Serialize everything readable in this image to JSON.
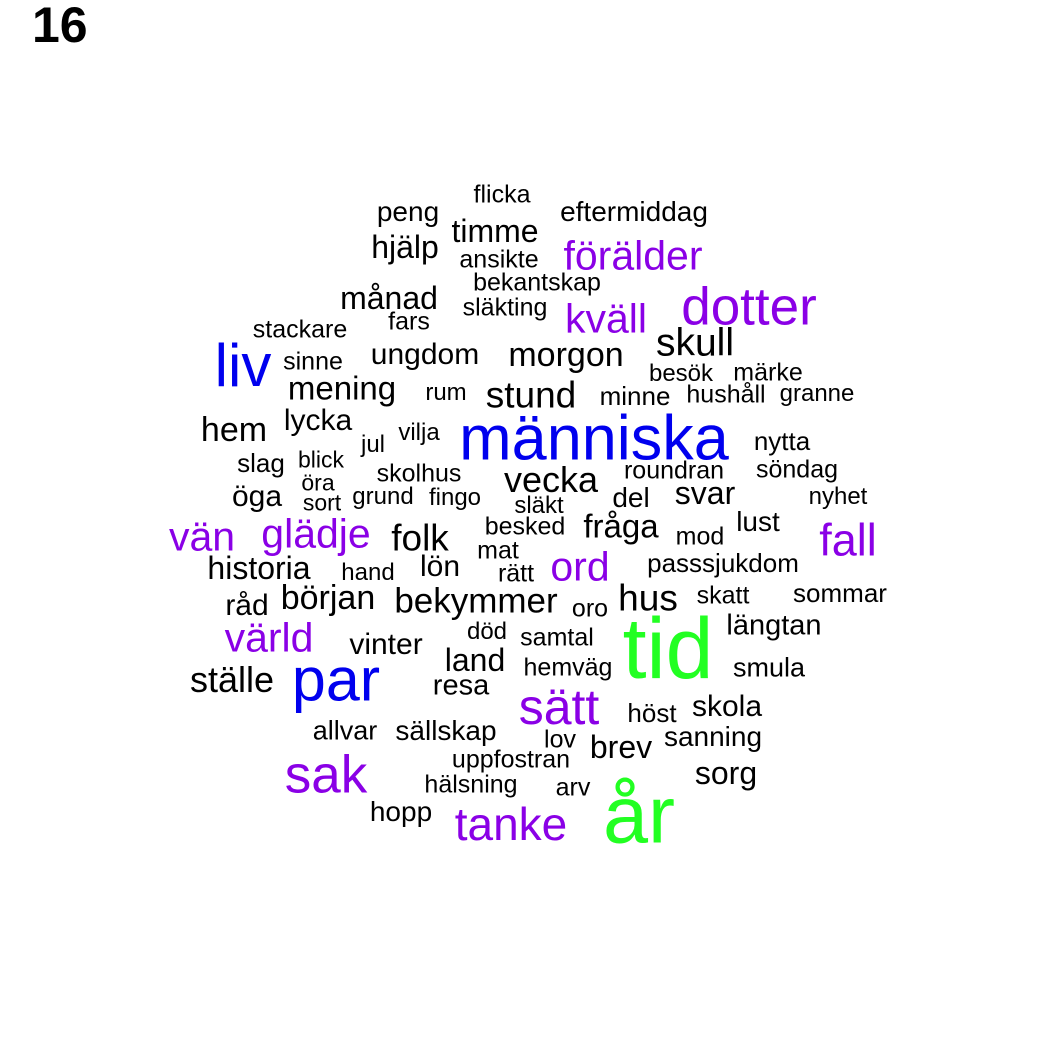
{
  "page_number": "16",
  "colors": {
    "black": "#000000",
    "purple": "#8a00e6",
    "blue": "#0000ee",
    "green": "#22ff22"
  },
  "words": [
    {
      "text": "flicka",
      "color": "black"
    },
    {
      "text": "peng",
      "color": "black"
    },
    {
      "text": "eftermiddag",
      "color": "black"
    },
    {
      "text": "timme",
      "color": "black"
    },
    {
      "text": "hjälp",
      "color": "black"
    },
    {
      "text": "förälder",
      "color": "purple"
    },
    {
      "text": "ansikte",
      "color": "black"
    },
    {
      "text": "bekantskap",
      "color": "black"
    },
    {
      "text": "månad",
      "color": "black"
    },
    {
      "text": "dotter",
      "color": "purple"
    },
    {
      "text": "släkting",
      "color": "black"
    },
    {
      "text": "fars",
      "color": "black"
    },
    {
      "text": "kväll",
      "color": "purple"
    },
    {
      "text": "stackare",
      "color": "black"
    },
    {
      "text": "skull",
      "color": "black"
    },
    {
      "text": "liv",
      "color": "blue"
    },
    {
      "text": "ungdom",
      "color": "black"
    },
    {
      "text": "morgon",
      "color": "black"
    },
    {
      "text": "sinne",
      "color": "black"
    },
    {
      "text": "besök",
      "color": "black"
    },
    {
      "text": "märke",
      "color": "black"
    },
    {
      "text": "mening",
      "color": "black"
    },
    {
      "text": "rum",
      "color": "black"
    },
    {
      "text": "stund",
      "color": "black"
    },
    {
      "text": "minne",
      "color": "black"
    },
    {
      "text": "hushåll",
      "color": "black"
    },
    {
      "text": "granne",
      "color": "black"
    },
    {
      "text": "lycka",
      "color": "black"
    },
    {
      "text": "hem",
      "color": "black"
    },
    {
      "text": "människa",
      "color": "blue"
    },
    {
      "text": "vilja",
      "color": "black"
    },
    {
      "text": "jul",
      "color": "black"
    },
    {
      "text": "nytta",
      "color": "black"
    },
    {
      "text": "blick",
      "color": "black"
    },
    {
      "text": "slag",
      "color": "black"
    },
    {
      "text": "skolhus",
      "color": "black"
    },
    {
      "text": "roundran",
      "color": "black"
    },
    {
      "text": "söndag",
      "color": "black"
    },
    {
      "text": "öra",
      "color": "black"
    },
    {
      "text": "vecka",
      "color": "black"
    },
    {
      "text": "svar",
      "color": "black"
    },
    {
      "text": "öga",
      "color": "black"
    },
    {
      "text": "sort",
      "color": "black"
    },
    {
      "text": "grund",
      "color": "black"
    },
    {
      "text": "fingo",
      "color": "black"
    },
    {
      "text": "släkt",
      "color": "black"
    },
    {
      "text": "del",
      "color": "black"
    },
    {
      "text": "nyhet",
      "color": "black"
    },
    {
      "text": "lust",
      "color": "black"
    },
    {
      "text": "glädje",
      "color": "purple"
    },
    {
      "text": "besked",
      "color": "black"
    },
    {
      "text": "fråga",
      "color": "black"
    },
    {
      "text": "vän",
      "color": "purple"
    },
    {
      "text": "folk",
      "color": "black"
    },
    {
      "text": "mod",
      "color": "black"
    },
    {
      "text": "fall",
      "color": "purple"
    },
    {
      "text": "mat",
      "color": "black"
    },
    {
      "text": "historia",
      "color": "black"
    },
    {
      "text": "lön",
      "color": "black"
    },
    {
      "text": "ord",
      "color": "purple"
    },
    {
      "text": "passsjukdom",
      "color": "black"
    },
    {
      "text": "hand",
      "color": "black"
    },
    {
      "text": "rätt",
      "color": "black"
    },
    {
      "text": "början",
      "color": "black"
    },
    {
      "text": "råd",
      "color": "black"
    },
    {
      "text": "hus",
      "color": "black"
    },
    {
      "text": "skatt",
      "color": "black"
    },
    {
      "text": "sommar",
      "color": "black"
    },
    {
      "text": "bekymmer",
      "color": "black"
    },
    {
      "text": "oro",
      "color": "black"
    },
    {
      "text": "värld",
      "color": "purple"
    },
    {
      "text": "död",
      "color": "black"
    },
    {
      "text": "längtan",
      "color": "black"
    },
    {
      "text": "tid",
      "color": "green"
    },
    {
      "text": "vinter",
      "color": "black"
    },
    {
      "text": "samtal",
      "color": "black"
    },
    {
      "text": "land",
      "color": "black"
    },
    {
      "text": "ställe",
      "color": "black"
    },
    {
      "text": "par",
      "color": "blue"
    },
    {
      "text": "hemväg",
      "color": "black"
    },
    {
      "text": "smula",
      "color": "black"
    },
    {
      "text": "resa",
      "color": "black"
    },
    {
      "text": "sätt",
      "color": "purple"
    },
    {
      "text": "skola",
      "color": "black"
    },
    {
      "text": "höst",
      "color": "black"
    },
    {
      "text": "allvar",
      "color": "black"
    },
    {
      "text": "sällskap",
      "color": "black"
    },
    {
      "text": "sanning",
      "color": "black"
    },
    {
      "text": "lov",
      "color": "black"
    },
    {
      "text": "brev",
      "color": "black"
    },
    {
      "text": "uppfostran",
      "color": "black"
    },
    {
      "text": "sak",
      "color": "purple"
    },
    {
      "text": "sorg",
      "color": "black"
    },
    {
      "text": "hälsning",
      "color": "black"
    },
    {
      "text": "arv",
      "color": "black"
    },
    {
      "text": "år",
      "color": "green"
    },
    {
      "text": "hopp",
      "color": "black"
    },
    {
      "text": "tanke",
      "color": "purple"
    }
  ]
}
